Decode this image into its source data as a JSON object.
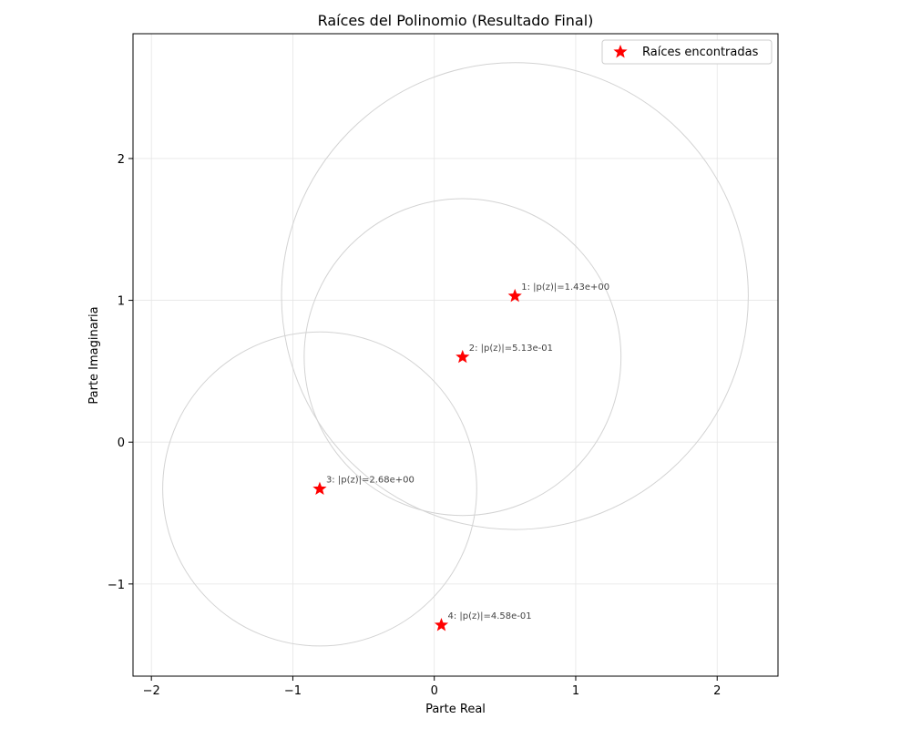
{
  "chart_data": {
    "type": "scatter",
    "title": "Raíces del Polinomio (Resultado Final)",
    "xlabel": "Parte Real",
    "ylabel": "Parte Imaginaria",
    "xlim": [
      -2.13,
      2.43
    ],
    "ylim": [
      -1.65,
      2.88
    ],
    "xticks": [
      -2,
      -1,
      0,
      1,
      2
    ],
    "yticks": [
      -1,
      0,
      1,
      2
    ],
    "xtick_labels": [
      "−2",
      "−1",
      "0",
      "1",
      "2"
    ],
    "ytick_labels": [
      "−1",
      "0",
      "1",
      "2"
    ],
    "grid": true,
    "legend": {
      "label": "Raíces encontradas",
      "placement": "top-right"
    },
    "marker_color": "#ff0000",
    "circle_color": "#d3d3d3",
    "points": [
      {
        "x": 0.57,
        "y": 1.03,
        "label": "1: |p(z)|=1.43e+00",
        "radius": 1.65
      },
      {
        "x": 0.2,
        "y": 0.6,
        "label": "2: |p(z)|=5.13e-01",
        "radius": 1.12
      },
      {
        "x": -0.81,
        "y": -0.33,
        "label": "3: |p(z)|=2.68e+00",
        "radius": 1.11
      },
      {
        "x": 0.05,
        "y": -1.29,
        "label": "4: |p(z)|=4.58e-01",
        "radius": null
      }
    ]
  }
}
